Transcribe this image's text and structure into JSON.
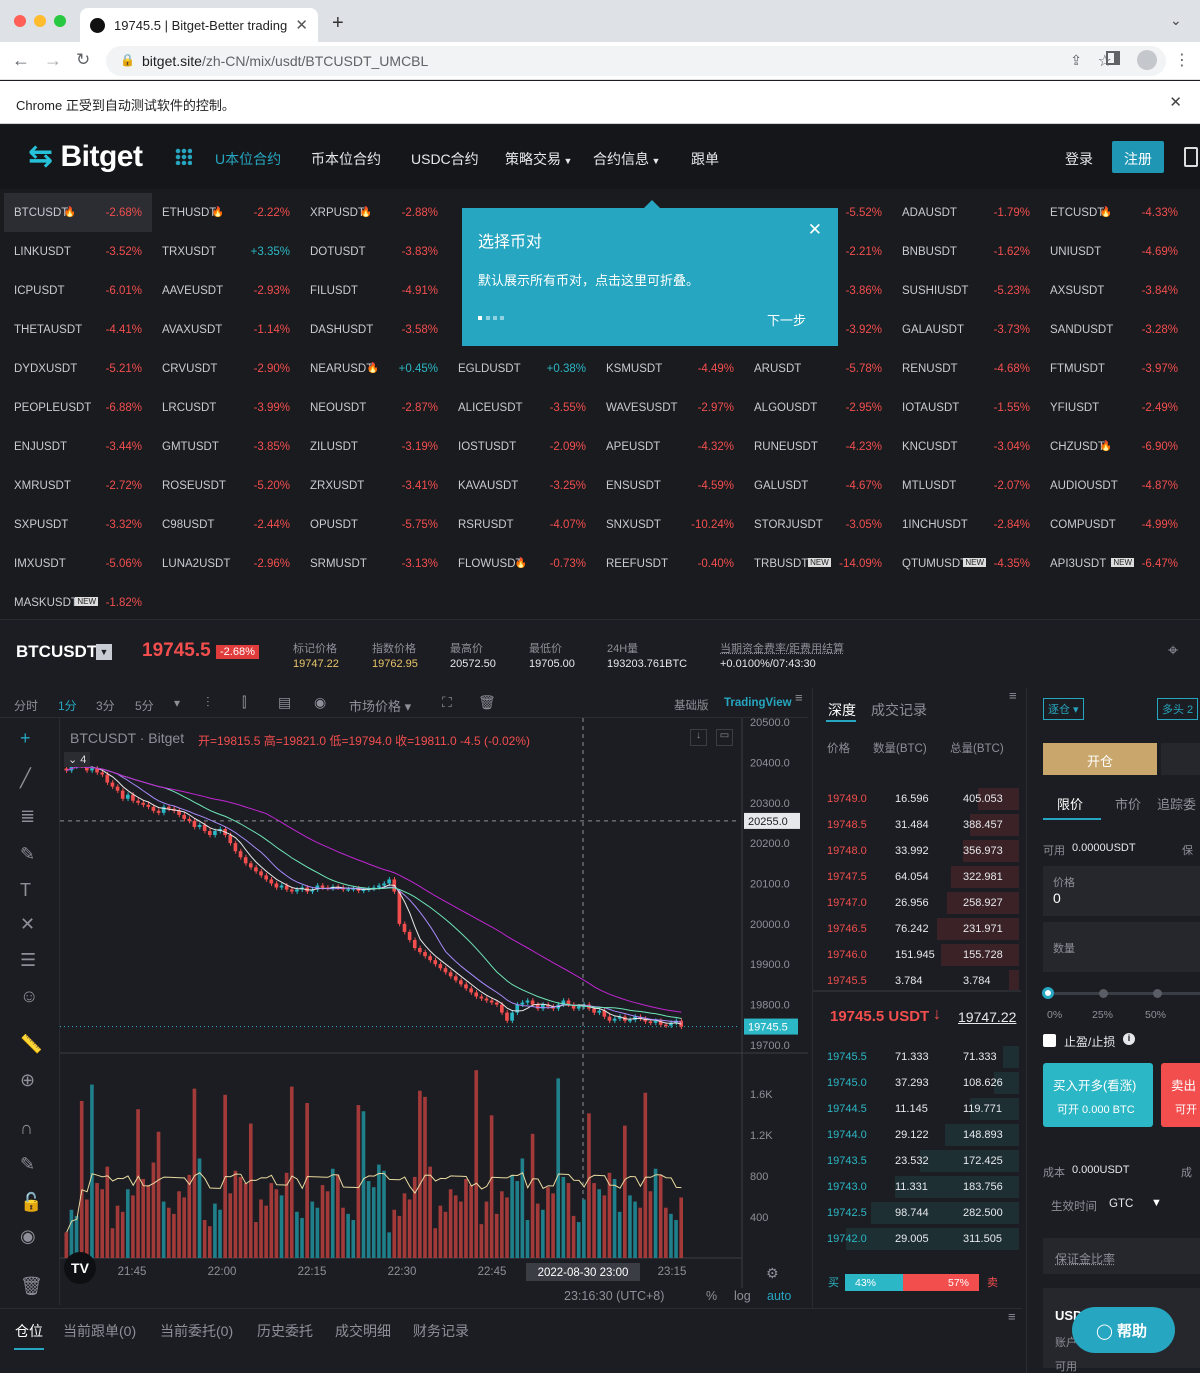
{
  "browser": {
    "tab_title": "19745.5 | Bitget-Better trading",
    "url_host": "bitget.site",
    "url_path": "/zh-CN/mix/usdt/BTCUSDT_UMCBL",
    "automation_notice": "Chrome 正受到自动测试软件的控制。"
  },
  "nav": {
    "logo": "Bitget",
    "items": [
      "U本位合约",
      "币本位合约",
      "USDC合约",
      "策略交易",
      "合约信息",
      "跟单"
    ],
    "login": "登录",
    "register": "注册"
  },
  "coins": [
    [
      {
        "n": "BTCUSDT",
        "f": true,
        "c": "-2.68%"
      },
      {
        "n": "ETHUSDT",
        "f": true,
        "c": "-2.22%"
      },
      {
        "n": "XRPUSDT",
        "f": true,
        "c": "-2.88%"
      },
      {
        "n": "",
        "c": ""
      },
      {
        "n": "",
        "c": ""
      },
      {
        "n": "",
        "c": "-5.52%"
      },
      {
        "n": "ADAUSDT",
        "c": "-1.79%"
      },
      {
        "n": "ETCUSDT",
        "f": true,
        "c": "-4.33%"
      }
    ],
    [
      {
        "n": "LINKUSDT",
        "c": "-3.52%"
      },
      {
        "n": "TRXUSDT",
        "c": "+3.35%",
        "up": true
      },
      {
        "n": "DOTUSDT",
        "c": "-3.83%"
      },
      {
        "n": "",
        "c": ""
      },
      {
        "n": "",
        "c": ""
      },
      {
        "n": "",
        "c": "-2.21%"
      },
      {
        "n": "BNBUSDT",
        "c": "-1.62%"
      },
      {
        "n": "UNIUSDT",
        "c": "-4.69%"
      }
    ],
    [
      {
        "n": "ICPUSDT",
        "c": "-6.01%"
      },
      {
        "n": "AAVEUSDT",
        "c": "-2.93%"
      },
      {
        "n": "FILUSDT",
        "c": "-4.91%"
      },
      {
        "n": "",
        "c": ""
      },
      {
        "n": "",
        "c": ""
      },
      {
        "n": "",
        "c": "-3.86%"
      },
      {
        "n": "SUSHIUSDT",
        "c": "-5.23%"
      },
      {
        "n": "AXSUSDT",
        "c": "-3.84%"
      }
    ],
    [
      {
        "n": "THETAUSDT",
        "c": "-4.41%"
      },
      {
        "n": "AVAXUSDT",
        "c": "-1.14%"
      },
      {
        "n": "DASHUSDT",
        "c": "-3.58%"
      },
      {
        "n": "",
        "c": ""
      },
      {
        "n": "",
        "c": ""
      },
      {
        "n": "",
        "c": "-3.92%"
      },
      {
        "n": "GALAUSDT",
        "c": "-3.73%"
      },
      {
        "n": "SANDUSDT",
        "c": "-3.28%"
      }
    ],
    [
      {
        "n": "DYDXUSDT",
        "c": "-5.21%"
      },
      {
        "n": "CRVUSDT",
        "c": "-2.90%"
      },
      {
        "n": "NEARUSDT",
        "f": true,
        "c": "+0.45%",
        "up": true
      },
      {
        "n": "EGLDUSDT",
        "c": "+0.38%",
        "up": true
      },
      {
        "n": "KSMUSDT",
        "c": "-4.49%"
      },
      {
        "n": "ARUSDT",
        "c": "-5.78%"
      },
      {
        "n": "RENUSDT",
        "c": "-4.68%"
      },
      {
        "n": "FTMUSDT",
        "c": "-3.97%"
      }
    ],
    [
      {
        "n": "PEOPLEUSDT",
        "c": "-6.88%"
      },
      {
        "n": "LRCUSDT",
        "c": "-3.99%"
      },
      {
        "n": "NEOUSDT",
        "c": "-2.87%"
      },
      {
        "n": "ALICEUSDT",
        "c": "-3.55%"
      },
      {
        "n": "WAVESUSDT",
        "c": "-2.97%"
      },
      {
        "n": "ALGOUSDT",
        "c": "-2.95%"
      },
      {
        "n": "IOTAUSDT",
        "c": "-1.55%"
      },
      {
        "n": "YFIUSDT",
        "c": "-2.49%"
      }
    ],
    [
      {
        "n": "ENJUSDT",
        "c": "-3.44%"
      },
      {
        "n": "GMTUSDT",
        "c": "-3.85%"
      },
      {
        "n": "ZILUSDT",
        "c": "-3.19%"
      },
      {
        "n": "IOSTUSDT",
        "c": "-2.09%"
      },
      {
        "n": "APEUSDT",
        "c": "-4.32%"
      },
      {
        "n": "RUNEUSDT",
        "c": "-4.23%"
      },
      {
        "n": "KNCUSDT",
        "c": "-3.04%"
      },
      {
        "n": "CHZUSDT",
        "f": true,
        "c": "-6.90%"
      }
    ],
    [
      {
        "n": "XMRUSDT",
        "c": "-2.72%"
      },
      {
        "n": "ROSEUSDT",
        "c": "-5.20%"
      },
      {
        "n": "ZRXUSDT",
        "c": "-3.41%"
      },
      {
        "n": "KAVAUSDT",
        "c": "-3.25%"
      },
      {
        "n": "ENSUSDT",
        "c": "-4.59%"
      },
      {
        "n": "GALUSDT",
        "c": "-4.67%"
      },
      {
        "n": "MTLUSDT",
        "c": "-2.07%"
      },
      {
        "n": "AUDIOUSDT",
        "c": "-4.87%"
      }
    ],
    [
      {
        "n": "SXPUSDT",
        "c": "-3.32%"
      },
      {
        "n": "C98USDT",
        "c": "-2.44%"
      },
      {
        "n": "OPUSDT",
        "c": "-5.75%"
      },
      {
        "n": "RSRUSDT",
        "c": "-4.07%"
      },
      {
        "n": "SNXUSDT",
        "c": "-10.24%"
      },
      {
        "n": "STORJUSDT",
        "c": "-3.05%"
      },
      {
        "n": "1INCHUSDT",
        "c": "-2.84%"
      },
      {
        "n": "COMPUSDT",
        "c": "-4.99%"
      }
    ],
    [
      {
        "n": "IMXUSDT",
        "c": "-5.06%"
      },
      {
        "n": "LUNA2USDT",
        "c": "-2.96%"
      },
      {
        "n": "SRMUSDT",
        "c": "-3.13%"
      },
      {
        "n": "FLOWUSDT",
        "f": true,
        "c": "-0.73%"
      },
      {
        "n": "REEFUSDT",
        "c": "-0.40%"
      },
      {
        "n": "TRBUSDT",
        "new": true,
        "c": "-14.09%"
      },
      {
        "n": "QTUMUSDT",
        "new": true,
        "c": "-4.35%"
      },
      {
        "n": "API3USDT",
        "new": true,
        "c": "-6.47%"
      }
    ],
    [
      {
        "n": "MASKUSDT",
        "new": true,
        "c": "-1.82%"
      }
    ]
  ],
  "new_badge": "NEW",
  "popup": {
    "title": "选择币对",
    "body": "默认展示所有币对，点击这里可折叠。",
    "next": "下一步"
  },
  "ticker": {
    "symbol": "BTCUSDT",
    "price": "19745.5",
    "change": "-2.68%",
    "stats": [
      {
        "label": "标记价格",
        "value": "19747.22",
        "accent": true
      },
      {
        "label": "指数价格",
        "value": "19762.95",
        "accent": true
      },
      {
        "label": "最高价",
        "value": "20572.50"
      },
      {
        "label": "最低价",
        "value": "19705.00"
      },
      {
        "label": "24H量",
        "value": "193203.761BTC"
      },
      {
        "label": "当期资金费率/距费用结算",
        "value": "+0.0100%/07:43:30"
      }
    ]
  },
  "chart_toolbar": {
    "items": [
      "分时",
      "1分",
      "3分",
      "5分"
    ],
    "market_price": "市场价格",
    "basic": "基础版",
    "tv": "TradingView"
  },
  "chart_data": {
    "type": "candlestick",
    "title": "BTCUSDT · Bitget",
    "ohlc_label": "开=19815.5 高=19821.0 低=19794.0 收=19811.0 -4.5 (-0.02%)",
    "indicator_count": "4",
    "price_ticks": [
      "20500.0",
      "20400.0",
      "20300.0",
      "20200.0",
      "20100.0",
      "20000.0",
      "19900.0",
      "19800.0",
      "19700.0"
    ],
    "price_ylim": [
      19680,
      20510
    ],
    "crosshair_price": "20255.0",
    "last_price": "19745.5",
    "volume_ticks": [
      "1.6K",
      "1.2K",
      "800",
      "400"
    ],
    "time_ticks": [
      "21:45",
      "22:00",
      "22:15",
      "22:30",
      "22:45",
      "23:15"
    ],
    "cursor_time": "2022-08-30   23:00",
    "clock": "23:16:30 (UTC+8)",
    "scale_opts": [
      "%",
      "log",
      "auto"
    ],
    "closes": [
      20380,
      20390,
      20395,
      20392,
      20380,
      20385,
      20375,
      20370,
      20350,
      20340,
      20330,
      20310,
      20320,
      20305,
      20300,
      20295,
      20290,
      20280,
      20275,
      20290,
      20285,
      20280,
      20270,
      20260,
      20255,
      20240,
      20245,
      20230,
      20220,
      20230,
      20235,
      20220,
      20200,
      20180,
      20165,
      20150,
      20140,
      20130,
      20120,
      20110,
      20100,
      20090,
      20095,
      20085,
      20080,
      20085,
      20090,
      20080,
      20085,
      20095,
      20090,
      20088,
      20092,
      20090,
      20085,
      20086,
      20088,
      20082,
      20085,
      20087,
      20090,
      20095,
      20100,
      20110,
      20080,
      20000,
      19980,
      19960,
      19940,
      19930,
      19920,
      19910,
      19900,
      19890,
      19880,
      19870,
      19860,
      19850,
      19840,
      19830,
      19820,
      19815,
      19810,
      19805,
      19800,
      19780,
      19760,
      19780,
      19800,
      19805,
      19810,
      19800,
      19790,
      19800,
      19795,
      19790,
      19800,
      19810,
      19800,
      19790,
      19795,
      19800,
      19790,
      19780,
      19785,
      19770,
      19760,
      19765,
      19770,
      19760,
      19762,
      19770,
      19765,
      19758,
      19755,
      19760,
      19750,
      19748,
      19755,
      19760,
      19745
    ]
  },
  "orderbook": {
    "tab_depth": "深度",
    "tab_trades": "成交记录",
    "headers": [
      "价格",
      "数量(BTC)",
      "总量(BTC)"
    ],
    "asks": [
      [
        "19749.0",
        "16.596",
        "405.053"
      ],
      [
        "19748.5",
        "31.484",
        "388.457"
      ],
      [
        "19748.0",
        "33.992",
        "356.973"
      ],
      [
        "19747.5",
        "64.054",
        "322.981"
      ],
      [
        "19747.0",
        "26.956",
        "258.927"
      ],
      [
        "19746.5",
        "76.242",
        "231.971"
      ],
      [
        "19746.0",
        "151.945",
        "155.728"
      ],
      [
        "19745.5",
        "3.784",
        "3.784"
      ]
    ],
    "ask_fill": [
      0.2,
      0.24,
      0.27,
      0.33,
      0.35,
      0.4,
      0.38,
      0.05
    ],
    "last_price": "19745.5 USDT",
    "mark": "19747.22",
    "bids": [
      [
        "19745.5",
        "71.333",
        "71.333"
      ],
      [
        "19745.0",
        "37.293",
        "108.626"
      ],
      [
        "19744.5",
        "11.145",
        "119.771"
      ],
      [
        "19744.0",
        "29.122",
        "148.893"
      ],
      [
        "19743.5",
        "23.532",
        "172.425"
      ],
      [
        "19743.0",
        "11.331",
        "183.756"
      ],
      [
        "19742.5",
        "98.744",
        "282.500"
      ],
      [
        "19742.0",
        "29.005",
        "311.505"
      ]
    ],
    "buy_label": "买",
    "sell_label": "卖",
    "buy_pct": "43%",
    "sell_pct": "57%",
    "buy_frac": 0.43
  },
  "trade": {
    "margin_mode": "逐仓",
    "leverage": "多头 2",
    "open": "开仓",
    "tabs": [
      "限价",
      "市价",
      "追踪委"
    ],
    "available": "可用",
    "available_val": "0.0000USDT",
    "avail_right": "保",
    "price_label": "价格",
    "price_val": "0",
    "qty_label": "数量",
    "slider": [
      "0%",
      "25%",
      "50%"
    ],
    "tpsl": "止盈/止损",
    "buy_btn": "买入开多(看涨)",
    "buy_sub": "可开 0.000 BTC",
    "sell_btn": "卖出",
    "sell_sub": "可开",
    "cost": "成本",
    "cost_val": "0.000USDT",
    "cost_right": "成",
    "tif_label": "生效时间",
    "tif_val": "GTC",
    "margin_ratio": "保证金比率",
    "acct_usd": "USD",
    "acct_label": "账户",
    "acct_label2": "可用"
  },
  "bottom_tabs": [
    "仓位",
    "当前跟单(0)",
    "当前委托(0)",
    "历史委托",
    "成交明细",
    "财务记录"
  ],
  "help": "帮助",
  "colors": {
    "up": "#2bb7c5",
    "down": "#f24e4e",
    "accent": "#26a6c0",
    "gold": "#c9a66b"
  }
}
